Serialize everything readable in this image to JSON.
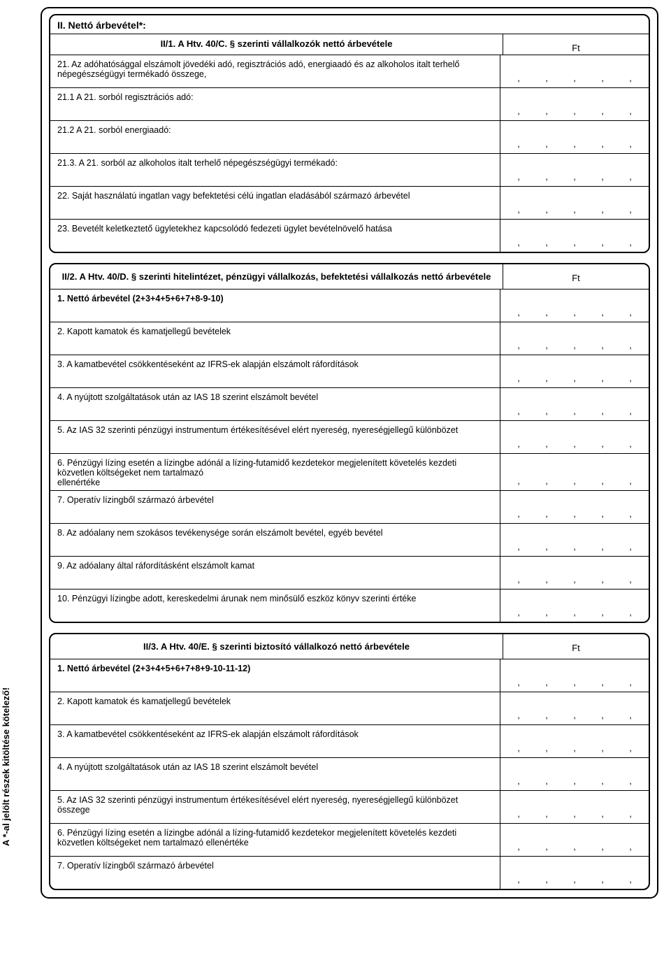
{
  "sidebar_note": "A *-al jelölt részek kitöltése kötelező!",
  "sections": {
    "s1": {
      "main_title": "II. Nettó árbevétel*:",
      "header_label": "II/1. A Htv. 40/C. § szerinti vállalkozók nettó árbevétele",
      "unit": "Ft",
      "rows": [
        "21. Az adóhatósággal elszámolt jövedéki adó, regisztrációs adó, energiaadó és az alkoholos italt terhelő népegészségügyi termékadó összege,",
        "21.1 A 21. sorból regisztrációs adó:",
        "21.2 A 21. sorból energiaadó:",
        "21.3. A 21. sorból az alkoholos italt terhelő népegészségügyi termékadó:",
        "22. Saját használatú ingatlan vagy befektetési célú ingatlan eladásából származó árbevétel",
        "23. Bevetélt keletkeztető ügyletekhez kapcsolódó fedezeti ügylet bevételnövelő hatása"
      ]
    },
    "s2": {
      "header_label": "II/2. A Htv. 40/D. § szerinti hitelintézet, pénzügyi vállalkozás, befektetési vállalkozás nettó árbevétele",
      "unit": "Ft",
      "row_bold": "1. Nettó árbevétel (2+3+4+5+6+7+8-9-10)",
      "rows": [
        "2. Kapott kamatok és kamatjellegű bevételek",
        "3. A kamatbevétel csökkentéseként az IFRS-ek alapján elszámolt ráfordítások",
        "4. A nyújtott szolgáltatások után az IAS 18 szerint elszámolt bevétel",
        "5. Az IAS 32 szerinti pénzügyi instrumentum értékesítésével elért nyereség, nyereségjellegű különbözet",
        "6. Pénzügyi lízing esetén a lízingbe adónál a lízing-futamidő kezdetekor megjelenített követelés kezdeti közvetlen költségeket nem tartalmazó\nellenértéke",
        "7. Operatív lízingből származó árbevétel",
        "8. Az adóalany nem szokásos tevékenysége során elszámolt bevétel, egyéb bevétel",
        "9. Az adóalany által ráfordításként elszámolt kamat",
        "10. Pénzügyi lízingbe adott, kereskedelmi árunak nem minősülő eszköz könyv szerinti értéke"
      ]
    },
    "s3": {
      "header_label": "II/3. A Htv. 40/E. § szerinti biztosító vállalkozó nettó árbevétele",
      "unit": "Ft",
      "row_bold": "1. Nettó árbevétel (2+3+4+5+6+7+8+9-10-11-12)",
      "rows": [
        "2. Kapott kamatok és kamatjellegű bevételek",
        "3. A kamatbevétel csökkentéseként az IFRS-ek alapján elszámolt ráfordítások",
        "4. A nyújtott szolgáltatások után az IAS 18 szerint elszámolt bevétel",
        "5. Az IAS 32 szerinti pénzügyi instrumentum értékesítésével elért nyereség, nyereségjellegű különbözet összege",
        "6. Pénzügyi lízing esetén a lízingbe adónál a lízing-futamidő kezdetekor megjelenített követelés kezdeti közvetlen költségeket nem tartalmazó ellenértéke",
        "7. Operatív lízingből származó árbevétel"
      ]
    }
  },
  "dot_sep": ",",
  "colors": {
    "border": "#000000",
    "bg": "#ffffff",
    "text": "#000000"
  }
}
